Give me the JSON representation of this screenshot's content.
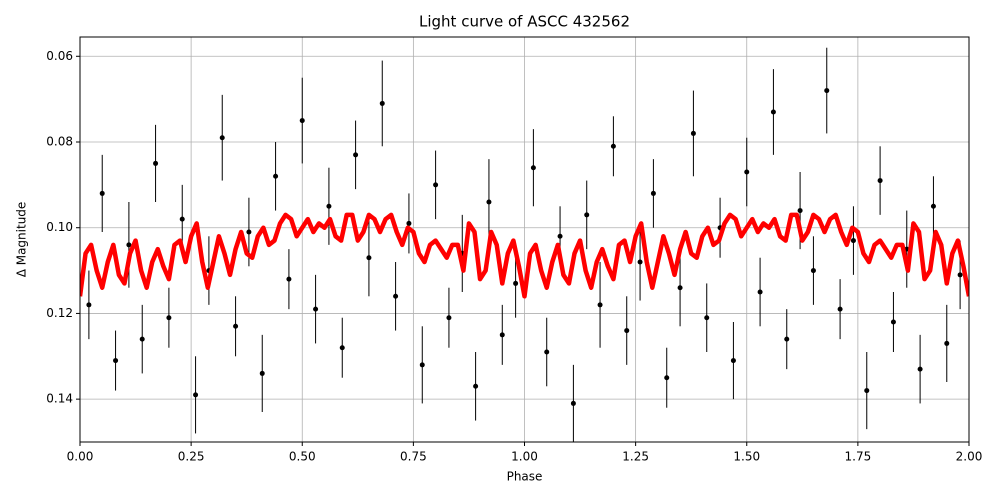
{
  "chart_data": {
    "type": "scatter",
    "title": "Light curve of ASCC 432562",
    "xlabel": "Phase",
    "ylabel": "Δ Magnitude",
    "xlim": [
      0,
      2
    ],
    "ylim": [
      0.15,
      0.0555
    ],
    "xticks": [
      {
        "value": 0,
        "label": "0.00"
      },
      0.25,
      {
        "value": 0.5,
        "label": "0.50"
      },
      0.75,
      {
        "value": 1,
        "label": "1.00"
      },
      1.25,
      {
        "value": 1.5,
        "label": "1.50"
      },
      1.75,
      {
        "value": 2,
        "label": "2.00"
      }
    ],
    "yticks": [
      0.06,
      0.08,
      {
        "value": 0.1,
        "label": "0.10"
      },
      0.12,
      0.14
    ],
    "grid": true,
    "series": [
      {
        "color": "#000000",
        "x": [
          0.02,
          0.05,
          0.08,
          0.11,
          0.14,
          0.17,
          0.2,
          0.23,
          0.26,
          0.29,
          0.32,
          0.35,
          0.38,
          0.41,
          0.44,
          0.47,
          0.5,
          0.53,
          0.56,
          0.59,
          0.62,
          0.65,
          0.68,
          0.71,
          0.74,
          0.77,
          0.8,
          0.83,
          0.86,
          0.89,
          0.92,
          0.95,
          0.98,
          1.02,
          1.05,
          1.08,
          1.11,
          1.14,
          1.17,
          1.2,
          1.23,
          1.26,
          1.29,
          1.32,
          1.35,
          1.38,
          1.41,
          1.44,
          1.47,
          1.5,
          1.53,
          1.56,
          1.59,
          1.62,
          1.65,
          1.68,
          1.71,
          1.74,
          1.77,
          1.8,
          1.83,
          1.86,
          1.89,
          1.92,
          1.95,
          1.98
        ],
        "values": [
          0.118,
          0.092,
          0.131,
          0.104,
          0.126,
          0.085,
          0.121,
          0.098,
          0.139,
          0.11,
          0.079,
          0.123,
          0.101,
          0.134,
          0.088,
          0.112,
          0.075,
          0.119,
          0.095,
          0.128,
          0.083,
          0.107,
          0.071,
          0.116,
          0.099,
          0.132,
          0.09,
          0.121,
          0.106,
          0.137,
          0.094,
          0.125,
          0.113,
          0.086,
          0.129,
          0.102,
          0.141,
          0.097,
          0.118,
          0.081,
          0.124,
          0.108,
          0.092,
          0.135,
          0.114,
          0.078,
          0.121,
          0.1,
          0.131,
          0.087,
          0.115,
          0.073,
          0.126,
          0.096,
          0.11,
          0.068,
          0.119,
          0.103,
          0.138,
          0.089,
          0.122,
          0.105,
          0.133,
          0.095,
          0.127,
          0.111
        ],
        "errors": [
          0.008,
          0.009,
          0.007,
          0.01,
          0.008,
          0.009,
          0.007,
          0.008,
          0.009,
          0.008,
          0.01,
          0.007,
          0.008,
          0.009,
          0.008,
          0.007,
          0.01,
          0.008,
          0.009,
          0.007,
          0.008,
          0.009,
          0.01,
          0.008,
          0.007,
          0.009,
          0.008,
          0.007,
          0.009,
          0.008,
          0.01,
          0.007,
          0.008,
          0.009,
          0.008,
          0.007,
          0.009,
          0.008,
          0.01,
          0.007,
          0.008,
          0.009,
          0.008,
          0.007,
          0.009,
          0.01,
          0.008,
          0.007,
          0.009,
          0.008,
          0.008,
          0.01,
          0.007,
          0.009,
          0.008,
          0.01,
          0.007,
          0.008,
          0.009,
          0.008,
          0.007,
          0.009,
          0.008,
          0.007,
          0.009,
          0.008
        ]
      },
      {
        "type": "line",
        "color": "#ff0000",
        "x": [
          0,
          0.0125,
          0.025,
          0.0375,
          0.05,
          0.0625,
          0.075,
          0.0875,
          0.1,
          0.1125,
          0.125,
          0.1375,
          0.15,
          0.1625,
          0.175,
          0.1875,
          0.2,
          0.2125,
          0.225,
          0.2375,
          0.25,
          0.2625,
          0.275,
          0.2875,
          0.3,
          0.3125,
          0.325,
          0.3375,
          0.35,
          0.3625,
          0.375,
          0.3875,
          0.4,
          0.4125,
          0.425,
          0.4375,
          0.45,
          0.4625,
          0.475,
          0.4875,
          0.5,
          0.5125,
          0.525,
          0.5375,
          0.55,
          0.5625,
          0.575,
          0.5875,
          0.6,
          0.6125,
          0.625,
          0.6375,
          0.65,
          0.6625,
          0.675,
          0.6875,
          0.7,
          0.7125,
          0.725,
          0.7375,
          0.75,
          0.7625,
          0.775,
          0.7875,
          0.8,
          0.8125,
          0.825,
          0.8375,
          0.85,
          0.8625,
          0.875,
          0.8875,
          0.9,
          0.9125,
          0.925,
          0.9375,
          0.95,
          0.9625,
          0.975,
          0.9875,
          1,
          1.0125,
          1.025,
          1.0375,
          1.05,
          1.0625,
          1.075,
          1.0875,
          1.1,
          1.1125,
          1.125,
          1.1375,
          1.15,
          1.1625,
          1.175,
          1.1875,
          1.2,
          1.2125,
          1.225,
          1.2375,
          1.25,
          1.2625,
          1.275,
          1.2875,
          1.3,
          1.3125,
          1.325,
          1.3375,
          1.35,
          1.3625,
          1.375,
          1.3875,
          1.4,
          1.4125,
          1.425,
          1.4375,
          1.45,
          1.4625,
          1.475,
          1.4875,
          1.5,
          1.5125,
          1.525,
          1.5375,
          1.55,
          1.5625,
          1.575,
          1.5875,
          1.6,
          1.6125,
          1.625,
          1.6375,
          1.65,
          1.6625,
          1.675,
          1.6875,
          1.7,
          1.7125,
          1.725,
          1.7375,
          1.75,
          1.7625,
          1.775,
          1.7875,
          1.8,
          1.8125,
          1.825,
          1.8375,
          1.85,
          1.8625,
          1.875,
          1.8875,
          1.9,
          1.9125,
          1.925,
          1.9375,
          1.95,
          1.9625,
          1.975,
          1.9875,
          2
        ],
        "values": [
          0.116,
          0.106,
          0.104,
          0.11,
          0.114,
          0.108,
          0.104,
          0.111,
          0.113,
          0.106,
          0.103,
          0.11,
          0.114,
          0.108,
          0.105,
          0.109,
          0.112,
          0.104,
          0.103,
          0.108,
          0.102,
          0.099,
          0.108,
          0.114,
          0.108,
          0.102,
          0.106,
          0.111,
          0.105,
          0.101,
          0.106,
          0.107,
          0.102,
          0.1,
          0.104,
          0.103,
          0.099,
          0.097,
          0.098,
          0.102,
          0.1,
          0.098,
          0.101,
          0.099,
          0.1,
          0.098,
          0.102,
          0.103,
          0.097,
          0.097,
          0.103,
          0.101,
          0.097,
          0.098,
          0.101,
          0.098,
          0.097,
          0.101,
          0.104,
          0.1,
          0.101,
          0.106,
          0.108,
          0.104,
          0.103,
          0.105,
          0.107,
          0.104,
          0.104,
          0.11,
          0.099,
          0.101,
          0.112,
          0.11,
          0.101,
          0.104,
          0.113,
          0.106,
          0.103,
          0.109,
          0.116,
          0.106,
          0.104,
          0.11,
          0.114,
          0.108,
          0.104,
          0.111,
          0.113,
          0.106,
          0.103,
          0.11,
          0.114,
          0.108,
          0.105,
          0.109,
          0.112,
          0.104,
          0.103,
          0.108,
          0.102,
          0.099,
          0.108,
          0.114,
          0.108,
          0.102,
          0.106,
          0.111,
          0.105,
          0.101,
          0.106,
          0.107,
          0.102,
          0.1,
          0.104,
          0.103,
          0.099,
          0.097,
          0.098,
          0.102,
          0.1,
          0.098,
          0.101,
          0.099,
          0.1,
          0.098,
          0.102,
          0.103,
          0.097,
          0.097,
          0.103,
          0.101,
          0.097,
          0.098,
          0.101,
          0.098,
          0.097,
          0.101,
          0.104,
          0.1,
          0.101,
          0.106,
          0.108,
          0.104,
          0.103,
          0.105,
          0.107,
          0.104,
          0.104,
          0.11,
          0.099,
          0.101,
          0.112,
          0.11,
          0.101,
          0.104,
          0.113,
          0.106,
          0.103,
          0.109,
          0.116
        ]
      }
    ]
  }
}
